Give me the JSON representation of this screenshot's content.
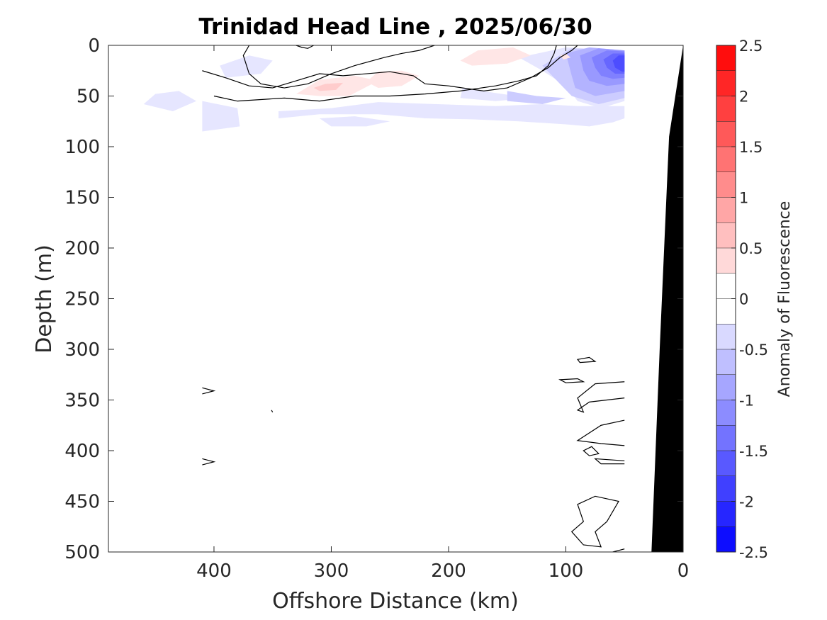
{
  "chart_data": {
    "type": "heatmap",
    "title": "Trinidad Head Line , 2025/06/30",
    "xlabel": "Offshore Distance (km)",
    "ylabel": "Depth (m)",
    "xlim": [
      490,
      0
    ],
    "ylim": [
      0,
      500
    ],
    "x_reversed": true,
    "y_reversed": true,
    "x_ticks": [
      400,
      300,
      200,
      100,
      0
    ],
    "y_ticks": [
      0,
      50,
      100,
      150,
      200,
      250,
      300,
      350,
      400,
      450,
      500
    ],
    "colorbar": {
      "label": "Anomaly of Fluorescence",
      "range": [
        -2.5,
        2.5
      ],
      "step": 0.25,
      "tick_values": [
        2.5,
        2,
        1.5,
        1,
        0.5,
        0,
        -0.5,
        -1,
        -1.5,
        -2,
        -2.5
      ],
      "tick_labels": [
        "2.5",
        "2",
        "1.5",
        "1",
        "0.5",
        "0",
        "-0.5",
        "-1",
        "-1.5",
        "-2",
        "-2.5"
      ],
      "neg_color": "#0000ff",
      "pos_color": "#ff0000",
      "zero_color": "#ffffff"
    },
    "anomaly_regions": [
      {
        "value": -0.25,
        "points": [
          [
            410,
            55
          ],
          [
            380,
            62
          ],
          [
            378,
            80
          ],
          [
            410,
            85
          ]
        ]
      },
      {
        "value": -0.25,
        "points": [
          [
            395,
            20
          ],
          [
            370,
            10
          ],
          [
            350,
            15
          ],
          [
            360,
            28
          ],
          [
            390,
            32
          ]
        ]
      },
      {
        "value": -0.25,
        "points": [
          [
            345,
            72
          ],
          [
            310,
            68
          ],
          [
            260,
            68
          ],
          [
            220,
            72
          ],
          [
            180,
            73
          ],
          [
            140,
            75
          ],
          [
            100,
            78
          ],
          [
            80,
            80
          ],
          [
            60,
            76
          ],
          [
            50,
            72
          ],
          [
            50,
            60
          ],
          [
            90,
            60
          ],
          [
            120,
            58
          ],
          [
            160,
            60
          ],
          [
            210,
            58
          ],
          [
            260,
            56
          ],
          [
            300,
            62
          ],
          [
            345,
            65
          ]
        ]
      },
      {
        "value": -0.25,
        "points": [
          [
            310,
            72
          ],
          [
            280,
            70
          ],
          [
            250,
            75
          ],
          [
            270,
            80
          ],
          [
            300,
            80
          ]
        ]
      },
      {
        "value": -0.25,
        "points": [
          [
            430,
            45
          ],
          [
            415,
            55
          ],
          [
            435,
            65
          ],
          [
            460,
            58
          ],
          [
            450,
            48
          ]
        ]
      },
      {
        "value": -0.25,
        "points": [
          [
            140,
            12
          ],
          [
            120,
            25
          ],
          [
            100,
            40
          ],
          [
            90,
            55
          ],
          [
            70,
            62
          ],
          [
            50,
            55
          ],
          [
            50,
            5
          ],
          [
            100,
            2
          ]
        ]
      },
      {
        "value": -0.25,
        "points": [
          [
            188,
            42
          ],
          [
            160,
            47
          ],
          [
            130,
            52
          ],
          [
            160,
            55
          ],
          [
            190,
            52
          ]
        ]
      },
      {
        "value": -0.5,
        "points": [
          [
            120,
            20
          ],
          [
            105,
            38
          ],
          [
            95,
            50
          ],
          [
            72,
            58
          ],
          [
            50,
            52
          ],
          [
            50,
            5
          ],
          [
            95,
            3
          ]
        ]
      },
      {
        "value": -0.5,
        "points": [
          [
            150,
            45
          ],
          [
            125,
            50
          ],
          [
            100,
            52
          ],
          [
            120,
            58
          ],
          [
            150,
            55
          ]
        ]
      },
      {
        "value": -0.75,
        "points": [
          [
            100,
            8
          ],
          [
            95,
            30
          ],
          [
            92,
            42
          ],
          [
            75,
            50
          ],
          [
            50,
            45
          ],
          [
            50,
            5
          ],
          [
            80,
            2
          ]
        ]
      },
      {
        "value": -1.0,
        "points": [
          [
            88,
            10
          ],
          [
            85,
            25
          ],
          [
            80,
            35
          ],
          [
            65,
            40
          ],
          [
            50,
            38
          ],
          [
            50,
            5
          ],
          [
            72,
            3
          ]
        ]
      },
      {
        "value": -1.25,
        "points": [
          [
            78,
            12
          ],
          [
            75,
            22
          ],
          [
            70,
            30
          ],
          [
            60,
            33
          ],
          [
            50,
            32
          ],
          [
            50,
            6
          ],
          [
            65,
            5
          ]
        ]
      },
      {
        "value": -1.5,
        "points": [
          [
            68,
            14
          ],
          [
            65,
            22
          ],
          [
            58,
            28
          ],
          [
            50,
            28
          ],
          [
            50,
            8
          ],
          [
            60,
            8
          ]
        ]
      },
      {
        "value": -1.75,
        "points": [
          [
            60,
            15
          ],
          [
            58,
            22
          ],
          [
            52,
            26
          ],
          [
            50,
            26
          ],
          [
            50,
            10
          ],
          [
            55,
            10
          ]
        ]
      },
      {
        "value": 0.25,
        "points": [
          [
            330,
            48
          ],
          [
            310,
            34
          ],
          [
            280,
            30
          ],
          [
            260,
            35
          ],
          [
            285,
            50
          ],
          [
            310,
            50
          ]
        ]
      },
      {
        "value": 0.25,
        "points": [
          [
            270,
            36
          ],
          [
            260,
            26
          ],
          [
            240,
            25
          ],
          [
            225,
            30
          ],
          [
            240,
            40
          ],
          [
            260,
            42
          ]
        ]
      },
      {
        "value": 0.25,
        "points": [
          [
            190,
            15
          ],
          [
            175,
            5
          ],
          [
            145,
            2
          ],
          [
            130,
            10
          ],
          [
            150,
            18
          ],
          [
            180,
            20
          ]
        ]
      },
      {
        "value": 0.25,
        "points": [
          [
            105,
            10
          ],
          [
            100,
            8
          ],
          [
            96,
            12
          ],
          [
            102,
            14
          ]
        ]
      },
      {
        "value": 0.5,
        "points": [
          [
            315,
            42
          ],
          [
            305,
            38
          ],
          [
            290,
            37
          ],
          [
            296,
            44
          ],
          [
            310,
            45
          ]
        ]
      }
    ],
    "contour_lines": [
      {
        "closed": false,
        "points": [
          [
            370,
            0
          ],
          [
            375,
            10
          ],
          [
            370,
            28
          ],
          [
            360,
            38
          ],
          [
            340,
            42
          ],
          [
            320,
            38
          ],
          [
            300,
            28
          ],
          [
            280,
            20
          ],
          [
            255,
            12
          ],
          [
            240,
            8
          ],
          [
            225,
            5
          ],
          [
            212,
            0
          ]
        ]
      },
      {
        "closed": false,
        "points": [
          [
            410,
            25
          ],
          [
            390,
            32
          ],
          [
            370,
            40
          ],
          [
            350,
            42
          ],
          [
            330,
            35
          ],
          [
            310,
            28
          ],
          [
            290,
            30
          ],
          [
            270,
            28
          ],
          [
            250,
            26
          ],
          [
            230,
            30
          ],
          [
            220,
            38
          ],
          [
            200,
            40
          ],
          [
            170,
            45
          ],
          [
            150,
            42
          ],
          [
            130,
            32
          ],
          [
            115,
            22
          ],
          [
            105,
            12
          ],
          [
            95,
            5
          ],
          [
            90,
            0
          ]
        ]
      },
      {
        "closed": false,
        "points": [
          [
            400,
            50
          ],
          [
            380,
            55
          ],
          [
            340,
            52
          ],
          [
            310,
            55
          ],
          [
            280,
            50
          ],
          [
            250,
            50
          ],
          [
            220,
            48
          ],
          [
            190,
            45
          ],
          [
            160,
            40
          ],
          [
            140,
            35
          ],
          [
            125,
            30
          ],
          [
            115,
            20
          ],
          [
            110,
            8
          ],
          [
            108,
            0
          ]
        ]
      },
      {
        "closed": false,
        "points": [
          [
            330,
            0
          ],
          [
            325,
            2
          ],
          [
            320,
            3
          ],
          [
            315,
            0
          ]
        ]
      },
      {
        "closed": true,
        "points": [
          [
            90,
            310
          ],
          [
            80,
            308
          ],
          [
            75,
            312
          ],
          [
            88,
            313
          ]
        ]
      },
      {
        "closed": true,
        "points": [
          [
            105,
            330
          ],
          [
            90,
            329
          ],
          [
            85,
            332
          ],
          [
            100,
            333
          ]
        ]
      },
      {
        "closed": false,
        "points": [
          [
            50,
            332
          ],
          [
            75,
            334
          ],
          [
            90,
            348
          ],
          [
            85,
            362
          ],
          [
            90,
            360
          ],
          [
            80,
            352
          ],
          [
            50,
            348
          ]
        ]
      },
      {
        "closed": false,
        "points": [
          [
            50,
            370
          ],
          [
            70,
            375
          ],
          [
            90,
            390
          ],
          [
            70,
            393
          ],
          [
            50,
            395
          ]
        ]
      },
      {
        "closed": true,
        "points": [
          [
            85,
            400
          ],
          [
            78,
            396
          ],
          [
            72,
            403
          ],
          [
            80,
            405
          ]
        ]
      },
      {
        "closed": false,
        "points": [
          [
            50,
            410
          ],
          [
            75,
            408
          ],
          [
            70,
            413
          ],
          [
            50,
            413
          ]
        ]
      },
      {
        "closed": true,
        "points": [
          [
            90,
            453
          ],
          [
            75,
            445
          ],
          [
            55,
            450
          ],
          [
            65,
            470
          ],
          [
            75,
            480
          ],
          [
            70,
            495
          ],
          [
            85,
            493
          ],
          [
            95,
            480
          ],
          [
            85,
            470
          ]
        ]
      },
      {
        "closed": false,
        "points": [
          [
            60,
            500
          ],
          [
            50,
            497
          ]
        ]
      },
      {
        "closed": false,
        "points": [
          [
            410,
            338
          ],
          [
            400,
            341
          ],
          [
            410,
            344
          ]
        ]
      },
      {
        "closed": false,
        "points": [
          [
            410,
            408
          ],
          [
            400,
            411
          ],
          [
            410,
            414
          ]
        ]
      },
      {
        "closed": false,
        "points": [
          [
            351,
            360
          ],
          [
            350,
            362
          ]
        ]
      }
    ],
    "bathymetry": [
      [
        0,
        0
      ],
      [
        0,
        500
      ],
      [
        27,
        500
      ],
      [
        20,
        300
      ],
      [
        12,
        90
      ],
      [
        0,
        0
      ]
    ],
    "bathymetry_color": "#000000",
    "data_extent_km": [
      410,
      50
    ]
  }
}
